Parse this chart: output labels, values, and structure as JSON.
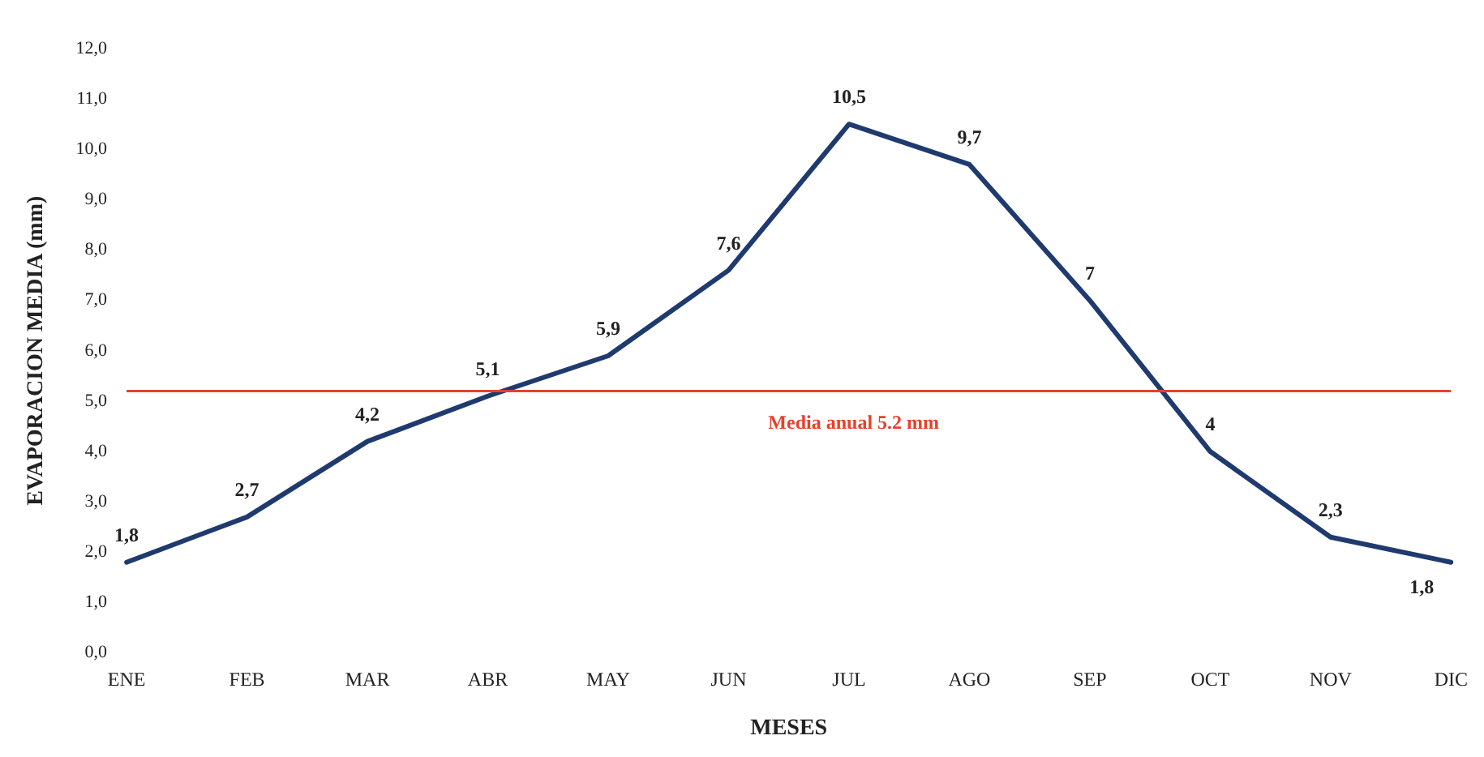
{
  "chart_data": {
    "type": "line",
    "xlabel": "MESES",
    "ylabel": "EVAPORACION MEDIA (mm)",
    "categories": [
      "ENE",
      "FEB",
      "MAR",
      "ABR",
      "MAY",
      "JUN",
      "JUL",
      "AGO",
      "SEP",
      "OCT",
      "NOV",
      "DIC"
    ],
    "series": [
      {
        "color": "#1f3a6e",
        "values": [
          1.8,
          2.7,
          4.2,
          5.1,
          5.9,
          7.6,
          10.5,
          9.7,
          7,
          4,
          2.3,
          1.8
        ],
        "value_labels": [
          "1,8",
          "2,7",
          "4,2",
          "5,1",
          "5,9",
          "7,6",
          "10,5",
          "9,7",
          "7",
          "4",
          "2,3",
          "1,8"
        ]
      }
    ],
    "ylim": [
      0,
      12
    ],
    "yticks": [
      {
        "value": 0,
        "label": "0,0"
      },
      {
        "value": 1,
        "label": "1,0"
      },
      {
        "value": 2,
        "label": "2,0"
      },
      {
        "value": 3,
        "label": "3,0"
      },
      {
        "value": 4,
        "label": "4,0"
      },
      {
        "value": 5,
        "label": "5,0"
      },
      {
        "value": 6,
        "label": "6,0"
      },
      {
        "value": 7,
        "label": "7,0"
      },
      {
        "value": 8,
        "label": "8,0"
      },
      {
        "value": 9,
        "label": "9,0"
      },
      {
        "value": 10,
        "label": "10,0"
      },
      {
        "value": 11,
        "label": "11,0"
      },
      {
        "value": 12,
        "label": "12,0"
      }
    ],
    "ref_lines": [
      {
        "axis": "y",
        "value": 5.2,
        "label": "Media anual 5.2 mm",
        "color": "#e8402f"
      }
    ],
    "grid": false,
    "legend": false,
    "marker": "none",
    "line_style": "solid"
  }
}
